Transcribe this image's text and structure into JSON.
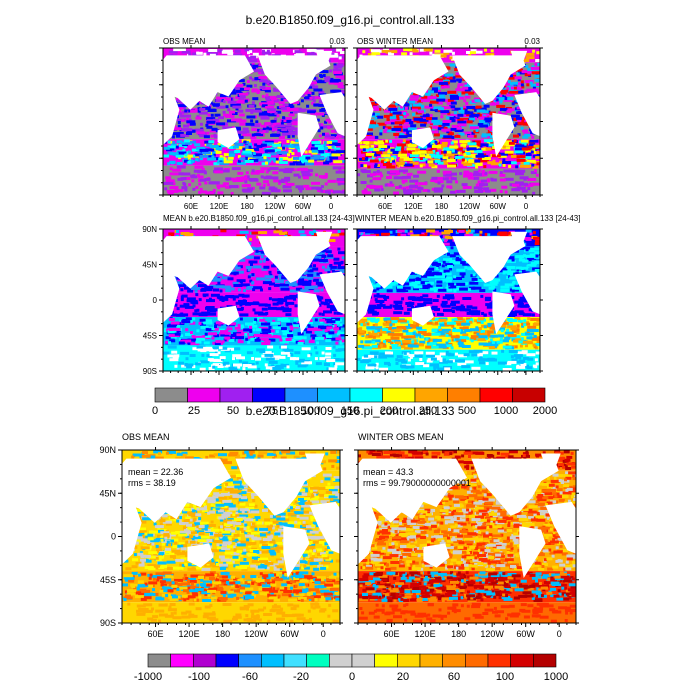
{
  "figure": {
    "title_top": "b.e20.B1850.f09_g16.pi_control.all.133",
    "title_bottom": "b.e20.B1850.f09_g16.pi_control.all.133"
  },
  "top_section": {
    "panels": [
      {
        "title": "OBS MEAN",
        "right_label": "0.03"
      },
      {
        "title": "OBS WINTER MEAN",
        "right_label": "0.03"
      },
      {
        "title": "MEAN b.e20.B1850.f09_g16.pi_control.all.133 [24-43]",
        "right_label": ""
      },
      {
        "title": "WINTER MEAN b.e20.B1850.f09_g16.pi_control.all.133 [24-43]",
        "right_label": ""
      }
    ],
    "lon_ticks": [
      "60E",
      "120E",
      "180",
      "120W",
      "60W",
      "0"
    ],
    "lat_ticks": [
      "90N",
      "45N",
      "0",
      "45S",
      "90S"
    ],
    "colorbar": {
      "labels": [
        "0",
        "25",
        "50",
        "75",
        "100",
        "150",
        "200",
        "250",
        "500",
        "1000",
        "2000"
      ],
      "colors": [
        "#8c8c8c",
        "#ee00ee",
        "#a020f0",
        "#0000ff",
        "#1e90ff",
        "#00bfff",
        "#00ffff",
        "#ffff00",
        "#ffa500",
        "#ff7f00",
        "#ff0000",
        "#c80000"
      ]
    }
  },
  "bottom_section": {
    "panels": [
      {
        "title": "OBS MEAN",
        "stat_lines": [
          "mean = 22.36",
          "rms = 38.19"
        ]
      },
      {
        "title": "WINTER OBS MEAN",
        "stat_lines": [
          "mean = 43.3",
          "rms = 99.79000000000001"
        ]
      }
    ],
    "lon_ticks": [
      "60E",
      "120E",
      "180",
      "120W",
      "60W",
      "0"
    ],
    "lat_ticks": [
      "90N",
      "45N",
      "0",
      "45S",
      "90S"
    ],
    "colorbar": {
      "labels": [
        "-1000",
        "-100",
        "-60",
        "-20",
        "0",
        "20",
        "60",
        "100",
        "1000"
      ],
      "colors": [
        "#8c8c8c",
        "#ff00ff",
        "#b000d0",
        "#0000ff",
        "#1e90ff",
        "#00bfff",
        "#40e0ff",
        "#00ffc0",
        "#d0d0d0",
        "#d0d0d0",
        "#ffff00",
        "#ffd700",
        "#ffb000",
        "#ff8c00",
        "#ff6a00",
        "#ff3000",
        "#d40000",
        "#b40000"
      ]
    }
  },
  "chart_data": [
    {
      "type": "heatmap",
      "title": "OBS MEAN",
      "subtitle": "0.03",
      "x_ticks": [
        "60E",
        "120E",
        "180",
        "120W",
        "60W",
        "0"
      ],
      "colorbar_labels": [
        "0",
        "25",
        "50",
        "75",
        "100",
        "150",
        "200",
        "250",
        "500",
        "1000",
        "2000"
      ]
    },
    {
      "type": "heatmap",
      "title": "OBS WINTER MEAN",
      "subtitle": "0.03",
      "x_ticks": [
        "60E",
        "120E",
        "180",
        "120W",
        "60W",
        "0"
      ],
      "colorbar_labels": [
        "0",
        "25",
        "50",
        "75",
        "100",
        "150",
        "200",
        "250",
        "500",
        "1000",
        "2000"
      ]
    },
    {
      "type": "heatmap",
      "title": "MEAN b.e20.B1850.f09_g16.pi_control.all.133 [24-43]",
      "y_ticks": [
        "90N",
        "45N",
        "0",
        "45S",
        "90S"
      ],
      "colorbar_labels": [
        "0",
        "25",
        "50",
        "75",
        "100",
        "150",
        "200",
        "250",
        "500",
        "1000",
        "2000"
      ]
    },
    {
      "type": "heatmap",
      "title": "WINTER MEAN b.e20.B1850.f09_g16.pi_control.all.133 [24-43]",
      "colorbar_labels": [
        "0",
        "25",
        "50",
        "75",
        "100",
        "150",
        "200",
        "250",
        "500",
        "1000",
        "2000"
      ]
    },
    {
      "type": "heatmap",
      "title": "OBS MEAN",
      "annotations": [
        "mean = 22.36",
        "rms = 38.19"
      ],
      "x_ticks": [
        "60E",
        "120E",
        "180",
        "120W",
        "60W",
        "0"
      ],
      "y_ticks": [
        "90N",
        "45N",
        "0",
        "45S",
        "90S"
      ],
      "colorbar_labels": [
        "-1000",
        "-100",
        "-60",
        "-20",
        "0",
        "20",
        "60",
        "100",
        "1000"
      ]
    },
    {
      "type": "heatmap",
      "title": "WINTER OBS MEAN",
      "annotations": [
        "mean = 43.3",
        "rms = 99.79000000000001"
      ],
      "x_ticks": [
        "60E",
        "120E",
        "180",
        "120W",
        "60W",
        "0"
      ],
      "colorbar_labels": [
        "-1000",
        "-100",
        "-60",
        "-20",
        "0",
        "20",
        "60",
        "100",
        "1000"
      ]
    }
  ]
}
